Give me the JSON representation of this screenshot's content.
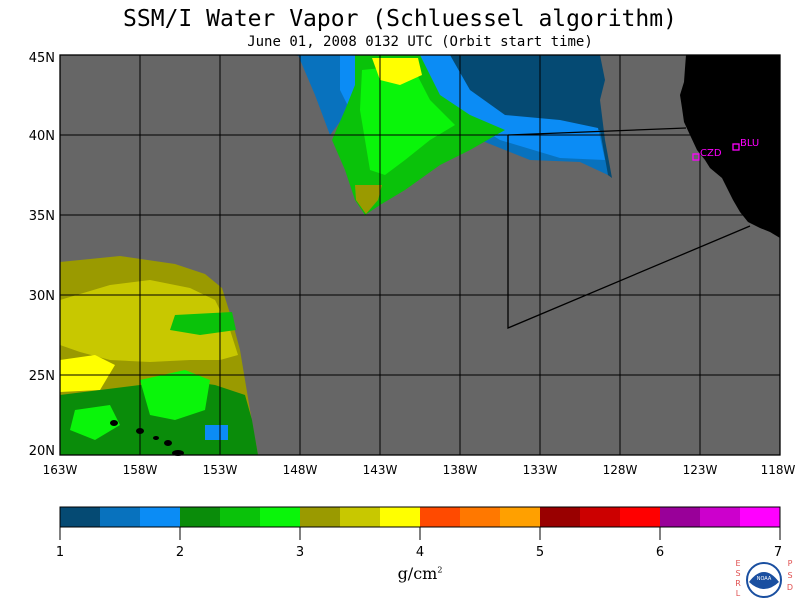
{
  "title": "SSM/I Water Vapor (Schluessel algorithm)",
  "subtitle": "June 01, 2008  0132 UTC  (Orbit start time)",
  "lat_labels": [
    "45N",
    "40N",
    "35N",
    "30N",
    "25N",
    "20N"
  ],
  "lon_labels": [
    "163W",
    "158W",
    "153W",
    "148W",
    "143W",
    "138W",
    "133W",
    "128W",
    "123W",
    "118W"
  ],
  "stations": [
    {
      "label": "CZD"
    },
    {
      "label": "BLU"
    }
  ],
  "colorbar": {
    "ticks": [
      "1",
      "2",
      "3",
      "4",
      "5",
      "6",
      "7"
    ],
    "units_base": "g/cm",
    "units_exp": "2",
    "colors": [
      "#054a73",
      "#0872be",
      "#0b8cf5",
      "#0a8c0a",
      "#0ac20a",
      "#0af50a",
      "#9a9a00",
      "#c8c800",
      "#ffff00",
      "#ff4a00",
      "#ff7800",
      "#ffa000",
      "#990000",
      "#cc0000",
      "#ff0000",
      "#990099",
      "#cc00cc",
      "#ff00ff"
    ]
  },
  "logo": {
    "left_letters": "ESRL",
    "right_letters": "PSD",
    "center_text": "NOAA"
  },
  "colors": {
    "land": "#000000",
    "ocean_nodata": "#666666",
    "station": "#ff00ff",
    "grid": "#000000"
  }
}
